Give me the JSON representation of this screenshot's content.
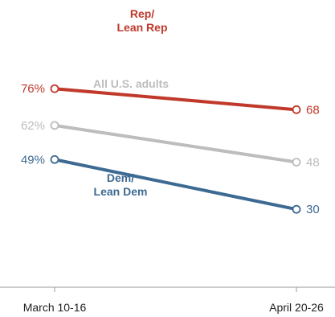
{
  "chart_data": {
    "type": "line",
    "x": [
      "March 10-16",
      "April 20-26"
    ],
    "series": [
      {
        "name": "Rep/ Lean Rep",
        "label_lines": [
          "Rep/",
          "Lean Rep"
        ],
        "values": [
          76,
          68
        ],
        "value_labels": [
          "76%",
          "68"
        ],
        "color": "#c0392b"
      },
      {
        "name": "All U.S. adults",
        "label_lines": [
          "All U.S. adults"
        ],
        "values": [
          62,
          48
        ],
        "value_labels": [
          "62%",
          "48"
        ],
        "color": "#bdbdbd"
      },
      {
        "name": "Dem/ Lean Dem",
        "label_lines": [
          "Dem/",
          "Lean Dem"
        ],
        "values": [
          49,
          30
        ],
        "value_labels": [
          "49%",
          "30"
        ],
        "color": "#3d6a92"
      }
    ],
    "ylim": [
      0,
      100
    ],
    "grid": false,
    "legend": "inline labels on lines"
  }
}
